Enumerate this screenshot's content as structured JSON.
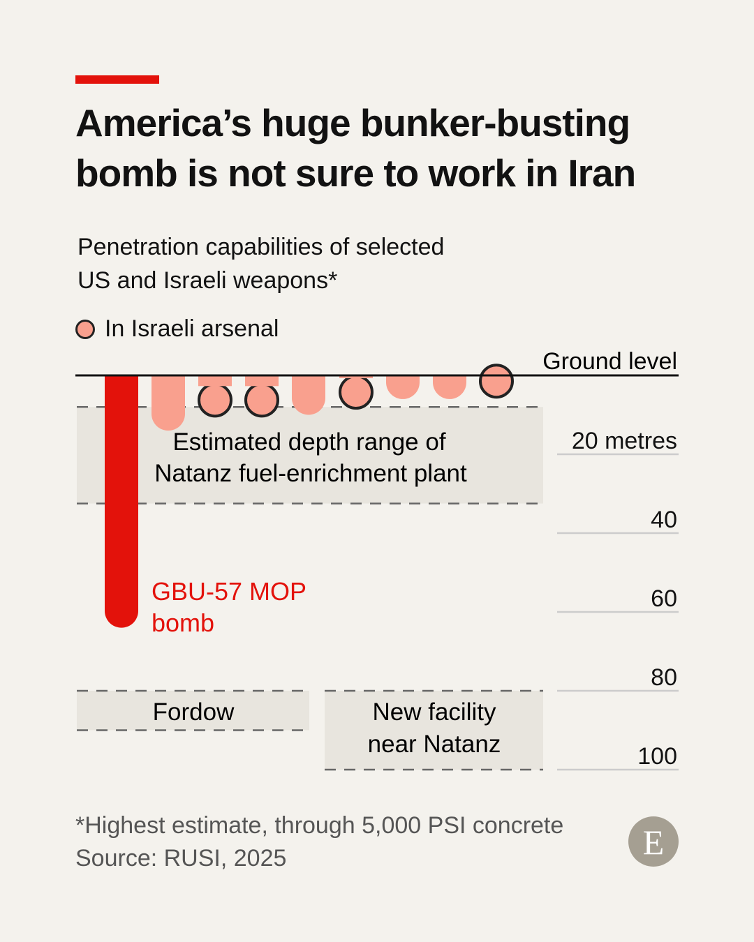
{
  "title": "America’s huge bunker-busting bomb is not sure to work in Iran",
  "subtitle_line1": "Penetration capabilities of selected",
  "subtitle_line2": "US and Israeli weapons*",
  "legend": "In Israeli arsenal",
  "footnote": "*Highest estimate, through 5,000 PSI concrete",
  "source": "Source: RUSI, 2025",
  "logo": "E",
  "chart_data": {
    "type": "bar",
    "orientation": "vertical-downward",
    "ylabel": "Ground level",
    "ylim": [
      0,
      100
    ],
    "yticks": [
      {
        "value": 20,
        "label": "20 metres"
      },
      {
        "value": 40,
        "label": "40"
      },
      {
        "value": 60,
        "label": "60"
      },
      {
        "value": 80,
        "label": "80"
      },
      {
        "value": 100,
        "label": "100"
      }
    ],
    "bars": [
      {
        "depth": 64,
        "israeli": false,
        "highlight": true,
        "label1": "GBU-57 MOP",
        "label2": "bomb"
      },
      {
        "depth": 14,
        "israeli": false
      },
      {
        "depth": 10.5,
        "israeli": true
      },
      {
        "depth": 10.5,
        "israeli": true
      },
      {
        "depth": 10,
        "israeli": false
      },
      {
        "depth": 8.5,
        "israeli": true
      },
      {
        "depth": 6,
        "israeli": false
      },
      {
        "depth": 6,
        "israeli": false
      },
      {
        "depth": 5.7,
        "israeli": true
      }
    ],
    "ranges": [
      {
        "name": "natanz",
        "from": 8,
        "to": 32.5,
        "label1": "Estimated depth range of",
        "label2": "Natanz fuel-enrichment plant"
      },
      {
        "name": "fordow",
        "from": 80,
        "to": 90,
        "label1": "Fordow",
        "label2": ""
      },
      {
        "name": "new-facility",
        "from": 80,
        "to": 100,
        "label1": "New facility",
        "label2": "near Natanz"
      }
    ],
    "colors": {
      "highlight": "#e3120b",
      "bar": "#f9a08e",
      "range": "#e8e5de"
    }
  }
}
